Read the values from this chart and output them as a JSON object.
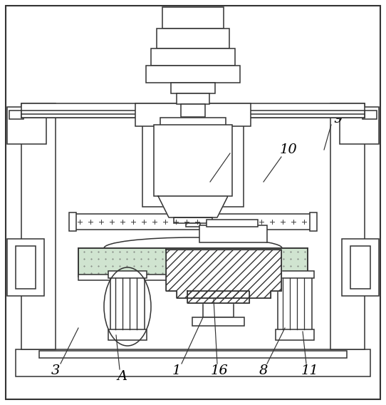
{
  "bg_color": "#ffffff",
  "line_color": "#333333",
  "figsize": [
    5.42,
    5.68
  ],
  "dpi": 100,
  "dot_color": "#c8ddc8",
  "label_fs": 14
}
